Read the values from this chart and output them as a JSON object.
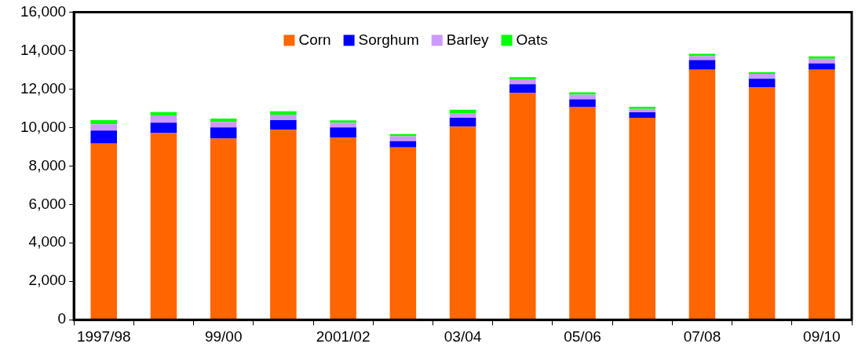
{
  "chart_data": {
    "type": "bar",
    "stacked": true,
    "legend": "top",
    "grid": false,
    "categories": [
      "1997/98",
      null,
      "99/00",
      null,
      "2001/02",
      null,
      "03/04",
      null,
      "05/06",
      null,
      "07/08",
      null,
      "09/10"
    ],
    "ylim": [
      0,
      16000
    ],
    "yticks": [
      {
        "value": 0,
        "label": "0"
      },
      {
        "value": 2000,
        "label": "2,000"
      },
      {
        "value": 4000,
        "label": "4,000"
      },
      {
        "value": 6000,
        "label": "6,000"
      },
      {
        "value": 8000,
        "label": "8,000"
      },
      {
        "value": 10000,
        "label": "10,000"
      },
      {
        "value": 12000,
        "label": "12,000"
      },
      {
        "value": 14000,
        "label": "14,000"
      },
      {
        "value": 16000,
        "label": "16,000"
      }
    ],
    "series": [
      {
        "name": "Corn",
        "color": "#ff6600",
        "values": [
          9170,
          9710,
          9420,
          9880,
          9460,
          8960,
          10040,
          11790,
          11080,
          10500,
          13000,
          12080,
          13000
        ]
      },
      {
        "name": "Sorghum",
        "color": "#0000ff",
        "values": [
          670,
          540,
          580,
          500,
          540,
          330,
          460,
          460,
          380,
          290,
          500,
          460,
          330
        ]
      },
      {
        "name": "Barley",
        "color": "#cc99ff",
        "values": [
          330,
          380,
          290,
          290,
          250,
          250,
          250,
          250,
          250,
          170,
          210,
          250,
          250
        ]
      },
      {
        "name": "Oats",
        "color": "#00ff00",
        "values": [
          210,
          170,
          170,
          170,
          120,
          120,
          170,
          120,
          120,
          120,
          120,
          80,
          120
        ]
      }
    ]
  }
}
